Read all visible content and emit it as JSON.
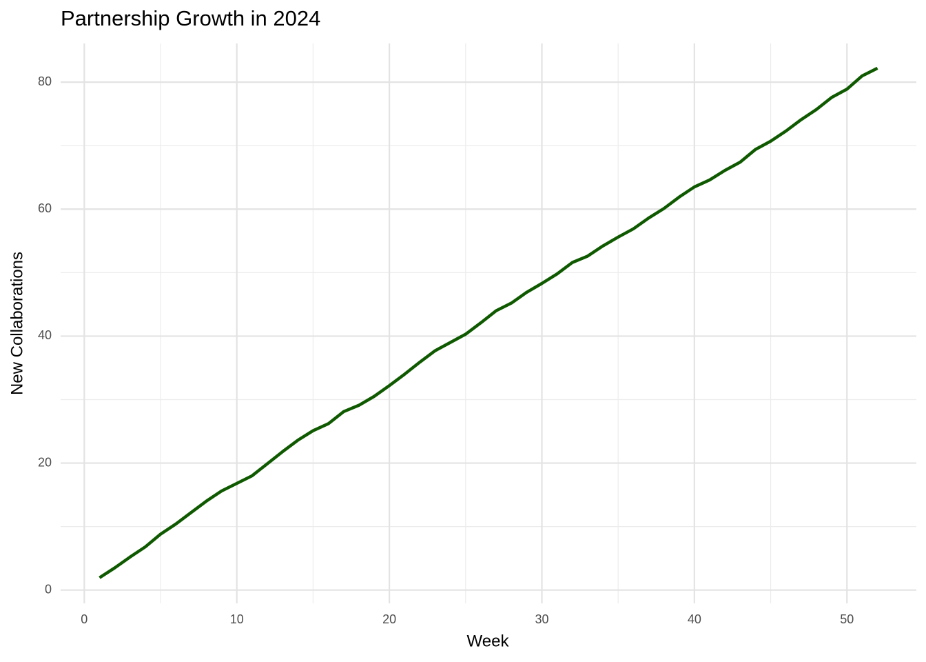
{
  "chart_data": {
    "type": "line",
    "title": "Partnership Growth in 2024",
    "x_label": "Week",
    "y_label": "New Collaborations",
    "x": [
      1,
      2,
      3,
      4,
      5,
      6,
      7,
      8,
      9,
      10,
      11,
      12,
      13,
      14,
      15,
      16,
      17,
      18,
      19,
      20,
      21,
      22,
      23,
      24,
      25,
      26,
      27,
      28,
      29,
      30,
      31,
      32,
      33,
      34,
      35,
      36,
      37,
      38,
      39,
      40,
      41,
      42,
      43,
      44,
      45,
      46,
      47,
      48,
      49,
      50,
      51,
      52
    ],
    "values": [
      1.95,
      3.5,
      5.2,
      6.8,
      8.8,
      10.4,
      12.2,
      14.0,
      15.6,
      16.8,
      18.0,
      19.9,
      21.8,
      23.6,
      25.1,
      26.2,
      28.1,
      29.1,
      30.5,
      32.2,
      34.0,
      35.9,
      37.7,
      39.0,
      40.3,
      42.1,
      44.0,
      45.2,
      46.9,
      48.3,
      49.8,
      51.6,
      52.6,
      54.2,
      55.6,
      56.9,
      58.6,
      60.1,
      61.9,
      63.5,
      64.6,
      66.1,
      67.4,
      69.4,
      70.7,
      72.3,
      74.1,
      75.7,
      77.6,
      78.9,
      81.0,
      82.2
    ],
    "color": "#0f5a00",
    "xlim": [
      -1.55,
      54.55
    ],
    "xticks": [
      0,
      10,
      20,
      30,
      40,
      50
    ],
    "x_minor_ticks": [
      5,
      15,
      25,
      35,
      45
    ],
    "ylim": [
      -2.1,
      86.1
    ],
    "yticks": [
      0,
      20,
      40,
      60,
      80
    ],
    "y_minor_ticks": [
      10,
      30,
      50,
      70
    ],
    "grid": true
  }
}
